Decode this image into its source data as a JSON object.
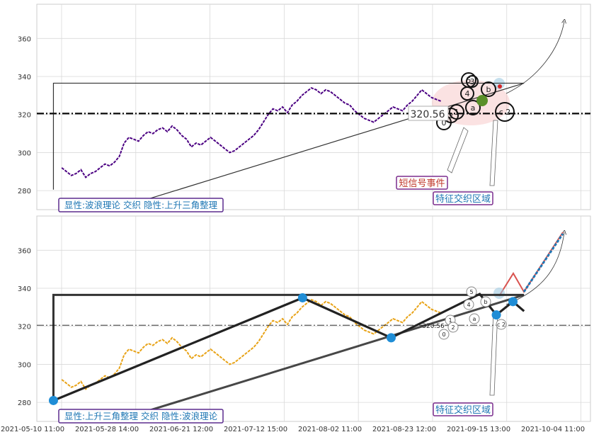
{
  "chart_data": [
    {
      "type": "line",
      "panel": "top",
      "ylim": [
        270,
        378
      ],
      "y_ticks": [
        280,
        300,
        320,
        340,
        360
      ],
      "grid": true,
      "price_color": "#4b0082",
      "hline": {
        "value": 320.56,
        "label": "320.56",
        "style": "dash-dot"
      },
      "triangle": {
        "top": 336.5,
        "base_start": [
          0.03,
          275.5
        ],
        "base_end": [
          0.88,
          336.5
        ]
      },
      "wave_labels": [
        "5",
        "3",
        "4",
        "b",
        "a",
        "1",
        "2",
        "0",
        "c 2"
      ],
      "annotations": [
        "短信号事件",
        "特征交织区域"
      ],
      "caption": "显性:波浪理论 交织 隐性:上升三角整理",
      "series": [
        {
          "values": [
            292,
            290,
            288,
            289,
            291,
            287,
            289,
            290,
            292,
            294,
            293,
            295,
            298,
            305,
            308,
            307,
            306,
            309,
            311,
            310,
            312,
            313,
            311,
            314,
            312,
            309,
            307,
            303,
            305,
            304,
            306,
            308,
            306,
            304,
            302,
            300,
            301,
            303,
            305,
            307,
            309,
            312,
            316,
            320,
            323,
            322,
            324,
            321,
            325,
            327,
            330,
            332,
            334,
            333,
            331,
            333,
            332,
            330,
            328,
            326,
            325,
            322,
            320,
            318,
            317,
            316,
            318,
            320,
            322,
            324,
            323,
            322,
            325,
            327,
            330,
            333,
            331,
            329,
            328,
            327
          ]
        }
      ]
    },
    {
      "type": "line",
      "panel": "bottom",
      "ylim": [
        270,
        378
      ],
      "y_ticks": [
        280,
        300,
        320,
        340,
        360
      ],
      "x_ticks": [
        "2021-05-10 11:00",
        "2021-05-28 14:00",
        "2021-06-21 12:00",
        "2021-07-12 15:00",
        "2021-08-02 11:00",
        "2021-08-23 12:00",
        "2021-09-15 13:00",
        "2021-10-04 11:00"
      ],
      "grid": true,
      "price_color": "#e8a317",
      "hline": {
        "value": 320.56,
        "label": "320.56",
        "style": "dash-dot"
      },
      "zigzag": [
        [
          0.03,
          281
        ],
        [
          0.48,
          335
        ],
        [
          0.64,
          314
        ],
        [
          0.8,
          337
        ],
        [
          0.83,
          326
        ],
        [
          0.86,
          333
        ],
        [
          0.88,
          328
        ]
      ],
      "triangle": {
        "top": 336.5,
        "base_start": [
          0.03,
          275.5
        ],
        "base_end": [
          0.88,
          336.5
        ]
      },
      "wave_labels": [
        "5",
        "4",
        "b",
        "a",
        "1",
        "2",
        "0",
        "c 2",
        "320.56"
      ],
      "annotations": [
        "特征交织区域"
      ],
      "caption": "显性:上升三角整理 交织 隐性:波浪理论",
      "series": [
        {
          "values": [
            292,
            290,
            288,
            289,
            291,
            287,
            289,
            290,
            292,
            294,
            293,
            295,
            298,
            305,
            308,
            307,
            306,
            309,
            311,
            310,
            312,
            313,
            311,
            314,
            312,
            309,
            307,
            303,
            305,
            304,
            306,
            308,
            306,
            304,
            302,
            300,
            301,
            303,
            305,
            307,
            309,
            312,
            316,
            320,
            323,
            322,
            324,
            321,
            325,
            327,
            330,
            332,
            334,
            333,
            331,
            333,
            332,
            330,
            328,
            326,
            325,
            322,
            320,
            318,
            317,
            316,
            318,
            320,
            322,
            324,
            323,
            322,
            325,
            327,
            330,
            333,
            331,
            329,
            328,
            327
          ]
        }
      ]
    }
  ]
}
